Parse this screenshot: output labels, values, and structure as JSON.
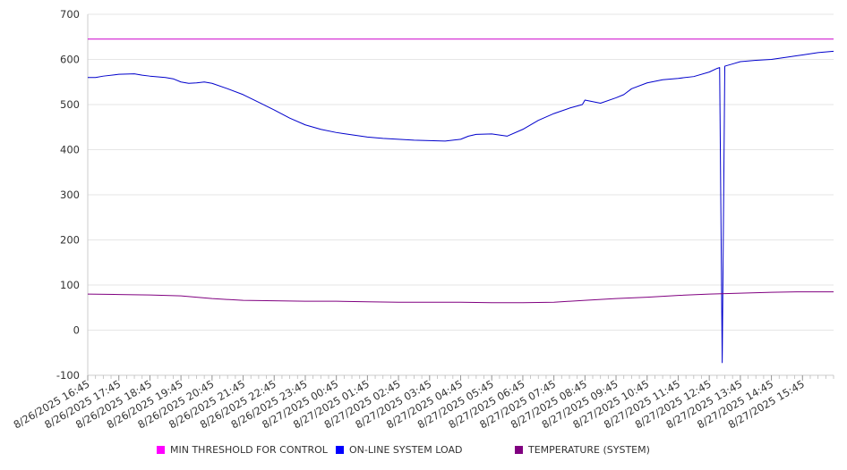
{
  "chart_data": {
    "type": "line",
    "title": "",
    "xlabel": "",
    "ylabel": "",
    "ylim": [
      -100,
      700
    ],
    "yticks": [
      -100,
      0,
      100,
      200,
      300,
      400,
      500,
      600,
      700
    ],
    "xlim": [
      "8/26/2025 16:45",
      "8/27/2025 16:45"
    ],
    "grid": true,
    "legend_position": "bottom",
    "x_ticks": [
      "8/26/2025 16:45",
      "8/26/2025 17:45",
      "8/26/2025 18:45",
      "8/26/2025 19:45",
      "8/26/2025 20:45",
      "8/26/2025 21:45",
      "8/26/2025 22:45",
      "8/26/2025 23:45",
      "8/27/2025 00:45",
      "8/27/2025 01:45",
      "8/27/2025 02:45",
      "8/27/2025 03:45",
      "8/27/2025 04:45",
      "8/27/2025 05:45",
      "8/27/2025 06:45",
      "8/27/2025 07:45",
      "8/27/2025 08:45",
      "8/27/2025 09:45",
      "8/27/2025 10:45",
      "8/27/2025 11:45",
      "8/27/2025 12:45",
      "8/27/2025 13:45",
      "8/27/2025 14:45",
      "8/27/2025 15:45"
    ],
    "series": [
      {
        "name": "MIN THRESHOLD FOR CONTROL",
        "color": "#cc00cc",
        "x": [
          "8/26/2025 16:45",
          "8/27/2025 16:45"
        ],
        "y": [
          645,
          645
        ]
      },
      {
        "name": "ON-LINE SYSTEM LOAD",
        "color": "#0000cc",
        "x": [
          "8/26/2025 16:45",
          "8/26/2025 17:00",
          "8/26/2025 17:15",
          "8/26/2025 17:45",
          "8/26/2025 18:15",
          "8/26/2025 18:30",
          "8/26/2025 18:45",
          "8/26/2025 19:15",
          "8/26/2025 19:30",
          "8/26/2025 19:45",
          "8/26/2025 20:00",
          "8/26/2025 20:15",
          "8/26/2025 20:30",
          "8/26/2025 20:45",
          "8/26/2025 21:15",
          "8/26/2025 21:45",
          "8/26/2025 22:15",
          "8/26/2025 22:45",
          "8/26/2025 23:15",
          "8/26/2025 23:45",
          "8/27/2025 00:15",
          "8/27/2025 00:45",
          "8/27/2025 01:15",
          "8/27/2025 01:45",
          "8/27/2025 02:15",
          "8/27/2025 02:45",
          "8/27/2025 03:15",
          "8/27/2025 03:45",
          "8/27/2025 04:15",
          "8/27/2025 04:45",
          "8/27/2025 05:00",
          "8/27/2025 05:15",
          "8/27/2025 05:45",
          "8/27/2025 06:15",
          "8/27/2025 06:45",
          "8/27/2025 07:15",
          "8/27/2025 07:45",
          "8/27/2025 08:15",
          "8/27/2025 08:40",
          "8/27/2025 08:45",
          "8/27/2025 09:15",
          "8/27/2025 09:45",
          "8/27/2025 10:00",
          "8/27/2025 10:15",
          "8/27/2025 10:45",
          "8/27/2025 11:15",
          "8/27/2025 11:45",
          "8/27/2025 12:15",
          "8/27/2025 12:45",
          "8/27/2025 13:00",
          "8/27/2025 13:05",
          "8/27/2025 13:10",
          "8/27/2025 13:15",
          "8/27/2025 13:30",
          "8/27/2025 13:45",
          "8/27/2025 14:15",
          "8/27/2025 14:45",
          "8/27/2025 15:15",
          "8/27/2025 15:45",
          "8/27/2025 16:15",
          "8/27/2025 16:45"
        ],
        "y": [
          560,
          560,
          563,
          567,
          568,
          565,
          563,
          560,
          557,
          550,
          547,
          548,
          550,
          547,
          535,
          522,
          505,
          488,
          470,
          455,
          445,
          438,
          433,
          428,
          425,
          423,
          421,
          420,
          419,
          423,
          430,
          434,
          435,
          430,
          445,
          465,
          480,
          492,
          500,
          510,
          503,
          515,
          522,
          535,
          548,
          555,
          558,
          562,
          572,
          580,
          582,
          -72,
          585,
          590,
          595,
          598,
          600,
          605,
          610,
          615,
          618
        ]
      },
      {
        "name": "TEMPERATURE (SYSTEM)",
        "color": "#800080",
        "x": [
          "8/26/2025 16:45",
          "8/26/2025 17:45",
          "8/26/2025 18:45",
          "8/26/2025 19:45",
          "8/26/2025 20:45",
          "8/26/2025 21:45",
          "8/26/2025 22:45",
          "8/26/2025 23:45",
          "8/27/2025 00:45",
          "8/27/2025 01:45",
          "8/27/2025 02:45",
          "8/27/2025 03:45",
          "8/27/2025 04:45",
          "8/27/2025 05:45",
          "8/27/2025 06:45",
          "8/27/2025 07:45",
          "8/27/2025 08:45",
          "8/27/2025 09:45",
          "8/27/2025 10:45",
          "8/27/2025 11:45",
          "8/27/2025 12:45",
          "8/27/2025 13:45",
          "8/27/2025 14:45",
          "8/27/2025 15:45",
          "8/27/2025 16:45"
        ],
        "y": [
          80,
          79,
          78,
          76,
          70,
          66,
          65,
          64,
          64,
          63,
          62,
          62,
          62,
          61,
          61,
          62,
          66,
          70,
          73,
          77,
          80,
          82,
          84,
          85,
          85
        ]
      }
    ]
  },
  "legend": [
    {
      "label": "MIN THRESHOLD FOR CONTROL",
      "color": "#ff00ff"
    },
    {
      "label": "ON-LINE SYSTEM LOAD",
      "color": "#0000ff"
    },
    {
      "label": "TEMPERATURE (SYSTEM)",
      "color": "#800080"
    }
  ]
}
